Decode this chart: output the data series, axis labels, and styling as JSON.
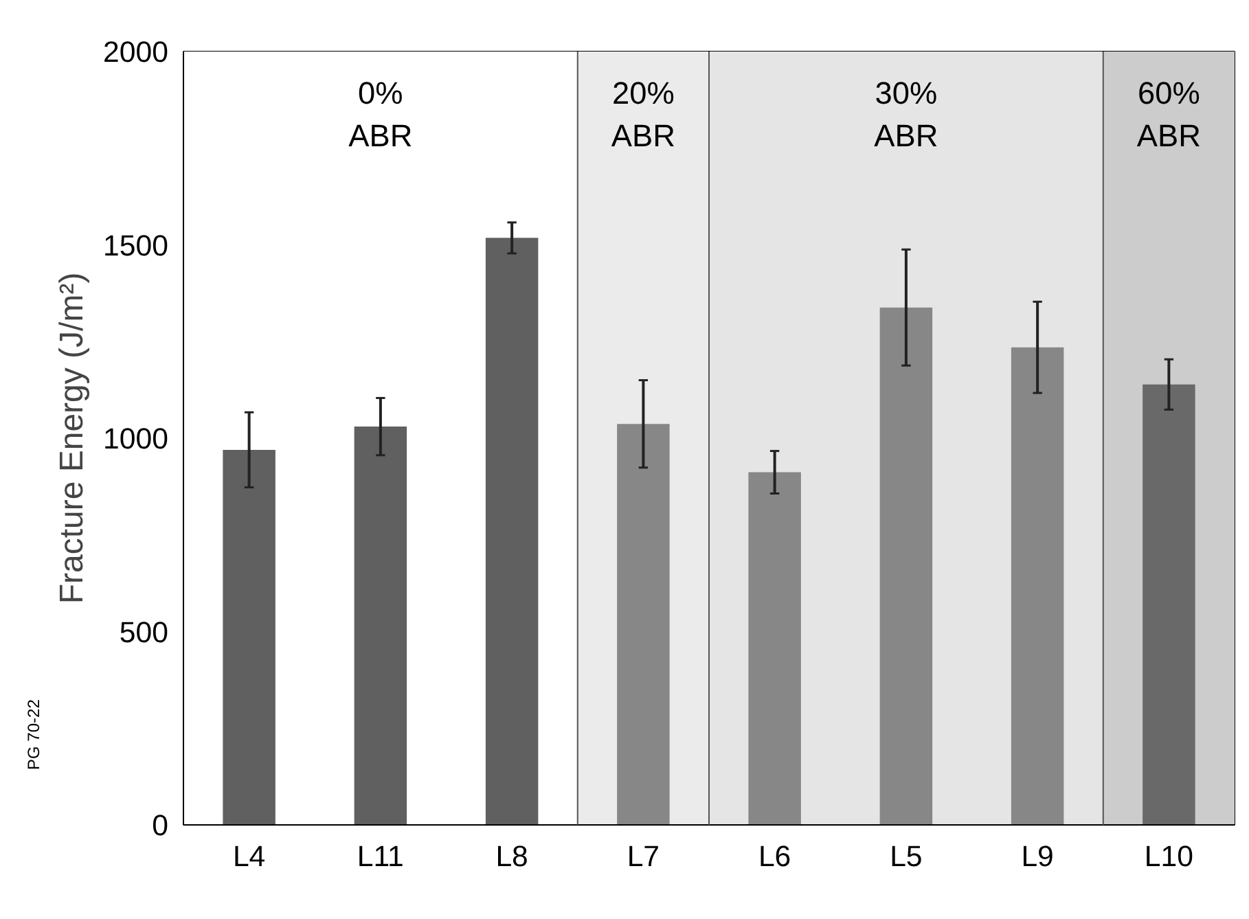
{
  "chart_data": {
    "type": "bar",
    "ylabel": "Fracture Energy (J/m²)",
    "categories": [
      "L4",
      "L11",
      "L8",
      "L7",
      "L6",
      "L5",
      "L9",
      "L10"
    ],
    "values": [
      970,
      1030,
      1518,
      1037,
      912,
      1338,
      1235,
      1139
    ],
    "errors": [
      97,
      74,
      40,
      113,
      55,
      150,
      118,
      65
    ],
    "colors": [
      "#606060",
      "#606060",
      "#606060",
      "#878787",
      "#878787",
      "#878787",
      "#878787",
      "#696969"
    ],
    "ylim": [
      0,
      2000
    ],
    "yticks": [
      0,
      500,
      1000,
      1500,
      2000
    ],
    "grid": false,
    "bands": [
      {
        "axis": "x",
        "from": "L4",
        "to": "L8",
        "label": "0%\nABR",
        "color": "#ffffff"
      },
      {
        "axis": "x",
        "from": "L7",
        "to": "L7",
        "label": "20%\nABR",
        "color": "#ebebeb"
      },
      {
        "axis": "x",
        "from": "L6",
        "to": "L9",
        "label": "30%\nABR",
        "color": "#e5e5e5"
      },
      {
        "axis": "x",
        "from": "L10",
        "to": "L10",
        "label": "60%\nABR",
        "color": "#cccccc"
      }
    ],
    "annotations": [
      "PG 70-22"
    ]
  }
}
